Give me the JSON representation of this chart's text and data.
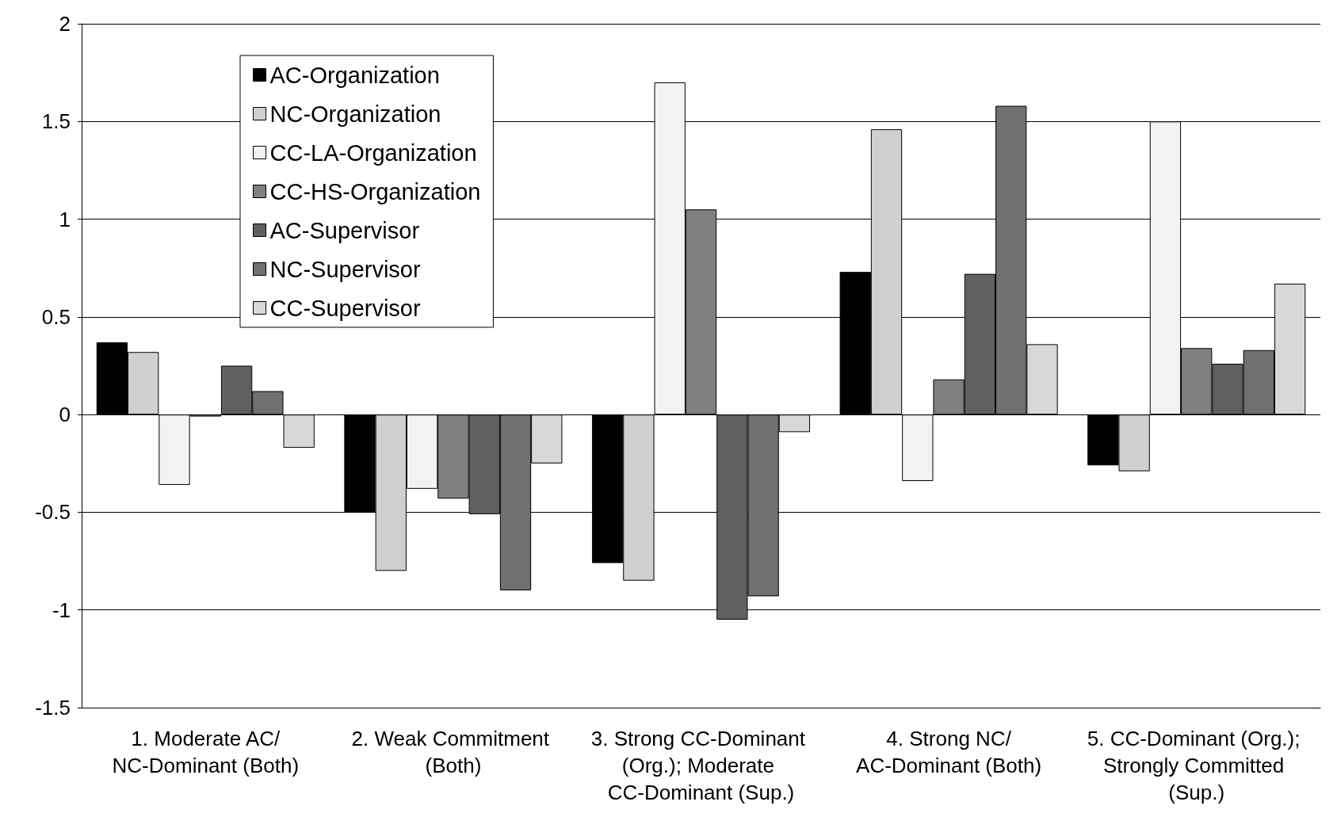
{
  "chart_data": {
    "type": "bar",
    "categories": [
      "1. Moderate AC/NC-Dominant (Both)",
      "2. Weak Commitment (Both)",
      "3. Strong CC-Dominant (Org.); Moderate CC-Dominant (Sup.)",
      "4. Strong NC/AC-Dominant (Both)",
      "5. CC-Dominant (Org.); Strongly Committed (Sup.)"
    ],
    "series": [
      {
        "name": "AC-Organization",
        "color": "#000000",
        "values": [
          0.37,
          -0.5,
          -0.76,
          0.73,
          -0.26
        ]
      },
      {
        "name": "NC-Organization",
        "color": "#d0d0d0",
        "values": [
          0.32,
          -0.8,
          -0.85,
          1.46,
          -0.29
        ]
      },
      {
        "name": "CC-LA-Organization",
        "color": "#f2f2f2",
        "values": [
          -0.36,
          -0.38,
          1.7,
          -0.34,
          1.5
        ]
      },
      {
        "name": "CC-HS-Organization",
        "color": "#808080",
        "values": [
          -0.01,
          -0.43,
          1.05,
          0.18,
          0.34
        ]
      },
      {
        "name": "AC-Supervisor",
        "color": "#606060",
        "values": [
          0.25,
          -0.51,
          -1.05,
          0.72,
          0.26
        ]
      },
      {
        "name": "NC-Supervisor",
        "color": "#707070",
        "values": [
          0.12,
          -0.9,
          -0.93,
          1.58,
          0.33
        ]
      },
      {
        "name": "CC-Supervisor",
        "color": "#d8d8d8",
        "values": [
          -0.17,
          -0.25,
          -0.09,
          0.36,
          0.67
        ]
      }
    ],
    "ylim": [
      -1.5,
      2
    ],
    "yticks": [
      -1.5,
      -1,
      -0.5,
      0,
      0.5,
      1,
      1.5,
      2
    ],
    "grid": "y",
    "legend": "top left"
  }
}
